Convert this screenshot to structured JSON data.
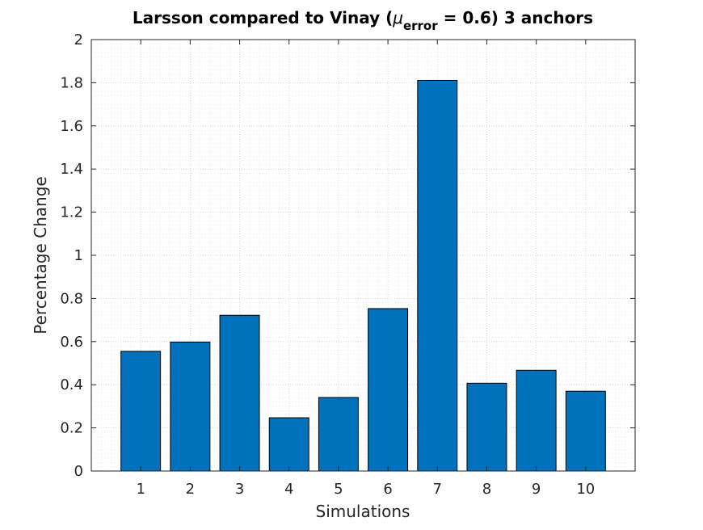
{
  "chart_data": {
    "type": "bar",
    "title": {
      "prefix": "Larsson compared to Vinay (",
      "mu": "μ",
      "subscript": "error",
      "suffix": " = 0.6) 3 anchors"
    },
    "xlabel": "Simulations",
    "ylabel": "Percentage Change",
    "categories": [
      "1",
      "2",
      "3",
      "4",
      "5",
      "6",
      "7",
      "8",
      "9",
      "10"
    ],
    "values": [
      0.555,
      0.598,
      0.722,
      0.247,
      0.341,
      0.753,
      1.811,
      0.407,
      0.467,
      0.37
    ],
    "ylim": [
      0,
      2
    ],
    "yticks": [
      "0",
      "0.2",
      "0.4",
      "0.6",
      "0.8",
      "1",
      "1.2",
      "1.4",
      "1.6",
      "1.8",
      "2"
    ],
    "ytick_values": [
      0,
      0.2,
      0.4,
      0.6,
      0.8,
      1.0,
      1.2,
      1.4,
      1.6,
      1.8,
      2.0
    ],
    "xlim": [
      0,
      11
    ],
    "grid": true,
    "minor_grid": true,
    "bar_color": "#0072BD"
  }
}
